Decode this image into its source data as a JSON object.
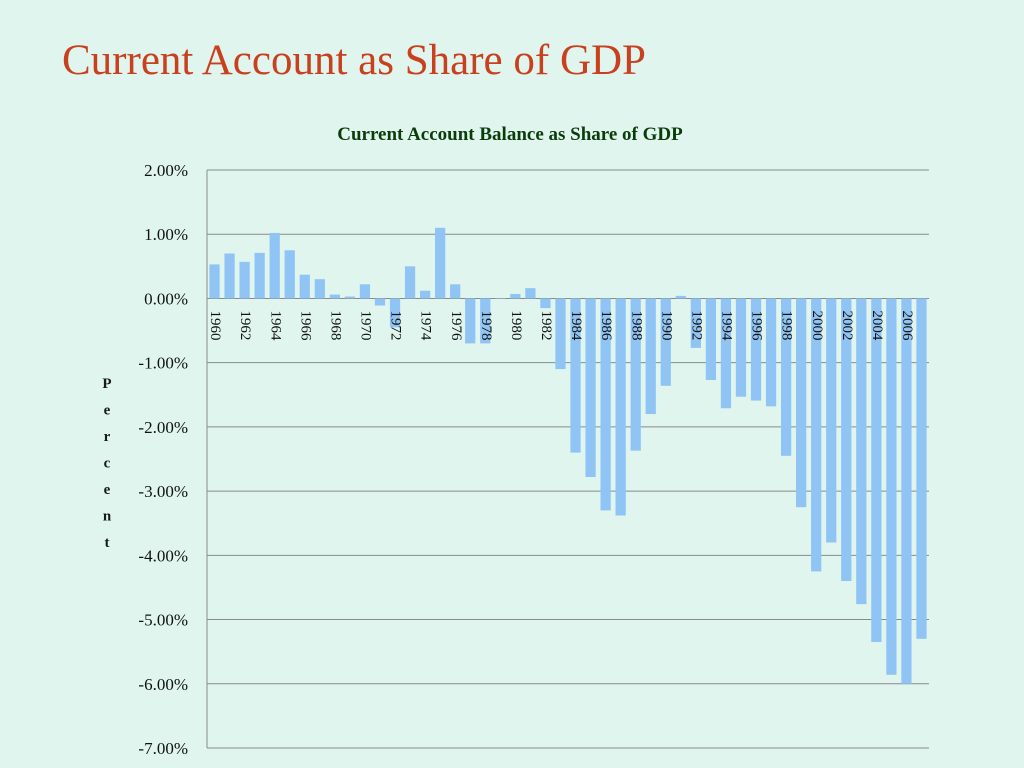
{
  "slide": {
    "title": "Current Account as Share of GDP"
  },
  "chart_data": {
    "type": "bar",
    "title": "Current Account Balance as Share of GDP",
    "xlabel": "",
    "ylabel": "Percent",
    "ylim": [
      -7,
      2
    ],
    "yticks": [
      2,
      1,
      0,
      -1,
      -2,
      -3,
      -4,
      -5,
      -6,
      -7
    ],
    "ytick_labels": [
      "2.00%",
      "1.00%",
      "0.00%",
      "-1.00%",
      "-2.00%",
      "-3.00%",
      "-4.00%",
      "-5.00%",
      "-6.00%",
      "-7.00%"
    ],
    "grid": true,
    "legend": "none",
    "bar_color": "#8fc4f4",
    "categories": [
      "1960",
      "1961",
      "1962",
      "1963",
      "1964",
      "1965",
      "1966",
      "1967",
      "1968",
      "1969",
      "1970",
      "1971",
      "1972",
      "1973",
      "1974",
      "1975",
      "1976",
      "1977",
      "1978",
      "1979",
      "1980",
      "1981",
      "1982",
      "1983",
      "1984",
      "1985",
      "1986",
      "1987",
      "1988",
      "1989",
      "1990",
      "1991",
      "1992",
      "1993",
      "1994",
      "1995",
      "1996",
      "1997",
      "1998",
      "1999",
      "2000",
      "2001",
      "2002",
      "2003",
      "2004",
      "2005",
      "2006",
      "2007"
    ],
    "labeled_categories": [
      "1960",
      "1962",
      "1964",
      "1966",
      "1968",
      "1970",
      "1972",
      "1974",
      "1976",
      "1978",
      "1980",
      "1982",
      "1984",
      "1986",
      "1988",
      "1990",
      "1992",
      "1994",
      "1996",
      "1998",
      "2000",
      "2002",
      "2004",
      "2006"
    ],
    "values": [
      0.53,
      0.7,
      0.57,
      0.71,
      1.02,
      0.75,
      0.37,
      0.3,
      0.06,
      0.03,
      0.22,
      -0.11,
      -0.45,
      0.5,
      0.12,
      1.1,
      0.22,
      -0.7,
      -0.7,
      0.0,
      0.07,
      0.16,
      -0.15,
      -1.1,
      -2.4,
      -2.78,
      -3.3,
      -3.38,
      -2.37,
      -1.8,
      -1.36,
      0.04,
      -0.77,
      -1.27,
      -1.71,
      -1.53,
      -1.59,
      -1.68,
      -2.45,
      -3.25,
      -4.25,
      -3.8,
      -4.4,
      -4.76,
      -5.35,
      -5.86,
      -6.0,
      -5.3
    ]
  }
}
